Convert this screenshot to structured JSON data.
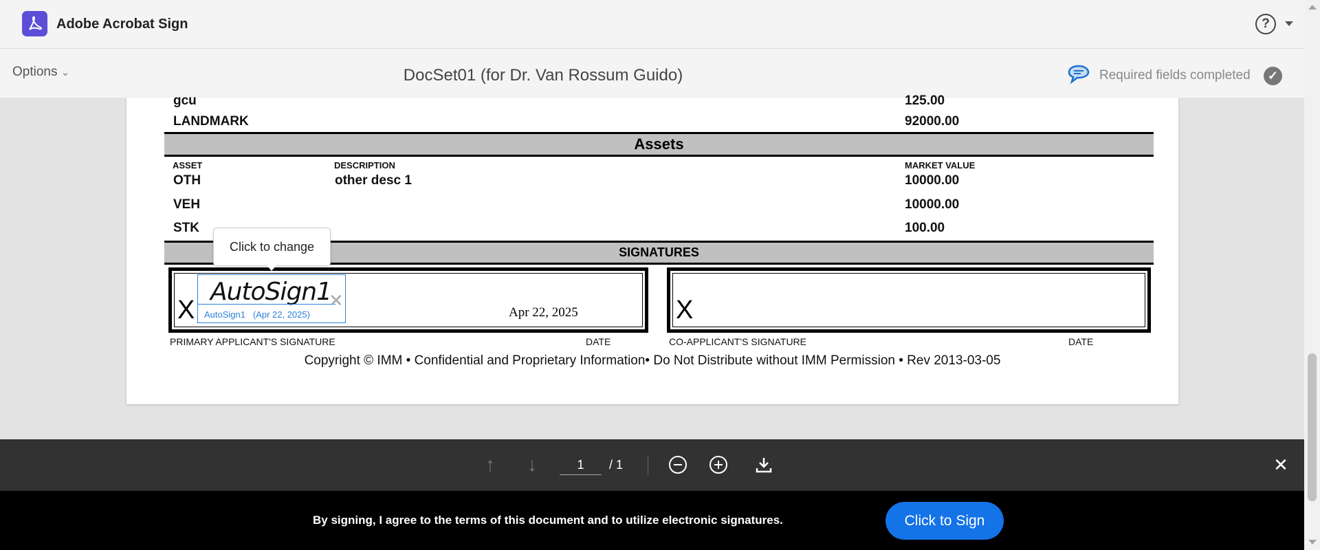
{
  "header": {
    "app_title": "Adobe Acrobat Sign",
    "help_icon": "help-circle-icon"
  },
  "subheader": {
    "options_label": "Options",
    "doc_title": "DocSet01 (for Dr. Van Rossum Guido)",
    "status": "Required fields completed"
  },
  "document": {
    "top_rows": [
      {
        "label": "gcu",
        "value": "125.00"
      },
      {
        "label": "LANDMARK",
        "value": "92000.00"
      }
    ],
    "assets": {
      "title": "Assets",
      "headers": [
        "ASSET",
        "DESCRIPTION",
        "MARKET VALUE"
      ],
      "rows": [
        {
          "asset": "OTH",
          "description": "other desc 1",
          "value": "10000.00"
        },
        {
          "asset": "VEH",
          "description": "",
          "value": "10000.00"
        },
        {
          "asset": "STK",
          "description": "",
          "value": "100.00"
        }
      ]
    },
    "signatures": {
      "title": "SIGNATURES",
      "x_mark": "X",
      "signature": "AutoSign1",
      "signature_caption": "AutoSign1",
      "signature_date_caption": "(Apr 22, 2025)",
      "date_value": "Apr 22, 2025",
      "tooltip": "Click to change",
      "primary_label": "PRIMARY APPLICANT'S SIGNATURE",
      "date_label": "DATE",
      "co_label": "CO-APPLICANT'S SIGNATURE"
    },
    "copyright": "Copyright © IMM • Confidential and Proprietary Information• Do Not Distribute without IMM Permission • Rev 2013-03-05"
  },
  "toolbar": {
    "page_current": "1",
    "page_total": "/ 1"
  },
  "footer": {
    "agreement": "By signing, I agree to the terms of this document and to utilize electronic signatures.",
    "sign_button": "Click to Sign",
    "accent": "#1473e6"
  }
}
